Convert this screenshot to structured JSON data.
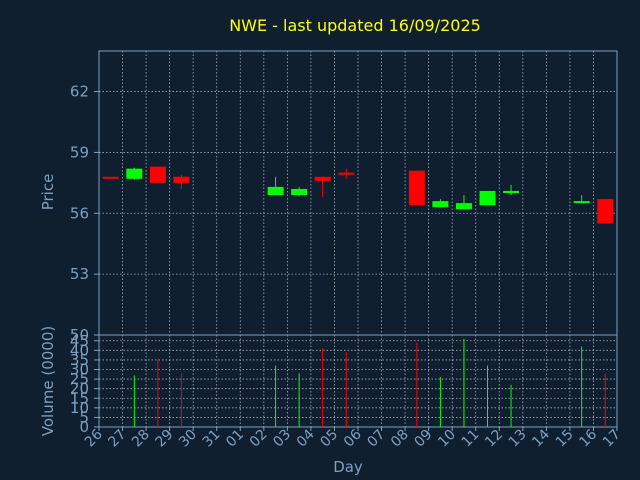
{
  "chart_data": {
    "type": "candlestick",
    "title": "NWE - last updated 16/09/2025",
    "xlabel": "Day",
    "price_panel": {
      "ylabel": "Price",
      "ylim": [
        50,
        64
      ],
      "yticks": [
        50,
        53,
        56,
        59,
        62
      ],
      "grid": true
    },
    "volume_panel": {
      "ylabel": "Volume (0000)",
      "ylim": [
        0,
        48
      ],
      "yticks": [
        0,
        5,
        10,
        15,
        20,
        25,
        30,
        35,
        40,
        45
      ],
      "grid": true
    },
    "x_ticks": [
      "26",
      "27",
      "28",
      "29",
      "30",
      "31",
      "01",
      "02",
      "03",
      "04",
      "05",
      "06",
      "07",
      "08",
      "09",
      "10",
      "11",
      "12",
      "13",
      "14",
      "15",
      "16",
      "17"
    ],
    "candles": [
      {
        "day": "26",
        "open": 57.8,
        "high": 57.8,
        "low": 57.8,
        "close": 57.8,
        "direction": "down",
        "volume": null
      },
      {
        "day": "27",
        "open": 57.7,
        "high": 58.25,
        "low": 57.65,
        "close": 58.2,
        "direction": "up",
        "volume": 27
      },
      {
        "day": "28",
        "open": 58.3,
        "high": 58.3,
        "low": 57.5,
        "close": 57.5,
        "direction": "down",
        "volume": 35
      },
      {
        "day": "29",
        "open": 57.8,
        "high": 57.9,
        "low": 57.2,
        "close": 57.5,
        "direction": "down",
        "volume": 28
      },
      {
        "day": "02",
        "open": 56.9,
        "high": 57.8,
        "low": 56.9,
        "close": 57.3,
        "direction": "up",
        "volume": 32
      },
      {
        "day": "03",
        "open": 56.9,
        "high": 57.3,
        "low": 56.85,
        "close": 57.2,
        "direction": "up",
        "volume": 28
      },
      {
        "day": "04",
        "open": 57.8,
        "high": 57.8,
        "low": 56.8,
        "close": 57.6,
        "direction": "down",
        "volume": 41
      },
      {
        "day": "05",
        "open": 58.0,
        "high": 58.2,
        "low": 57.7,
        "close": 57.9,
        "direction": "down",
        "volume": 39
      },
      {
        "day": "08",
        "open": 58.1,
        "high": 58.1,
        "low": 56.4,
        "close": 56.4,
        "direction": "down",
        "volume": 44
      },
      {
        "day": "09",
        "open": 56.3,
        "high": 56.7,
        "low": 56.3,
        "close": 56.6,
        "direction": "up",
        "volume": 26
      },
      {
        "day": "10",
        "open": 56.2,
        "high": 56.9,
        "low": 56.2,
        "close": 56.5,
        "direction": "up",
        "volume": 46
      },
      {
        "day": "11",
        "open": 56.4,
        "high": 57.1,
        "low": 56.4,
        "close": 57.1,
        "direction": "up",
        "volume": 32
      },
      {
        "day": "12",
        "open": 57.0,
        "high": 57.4,
        "low": 56.9,
        "close": 57.1,
        "direction": "up",
        "volume": 22
      },
      {
        "day": "15",
        "open": 56.5,
        "high": 56.9,
        "low": 56.5,
        "close": 56.6,
        "direction": "up",
        "volume": 42
      },
      {
        "day": "16",
        "open": 56.7,
        "high": 56.7,
        "low": 55.5,
        "close": 55.5,
        "direction": "down",
        "volume": 28
      }
    ],
    "colors": {
      "background": "#0f1f30",
      "axis": "#7f9fbf",
      "grid": "#ffffff",
      "title": "#ffff00",
      "up": "#00ff00",
      "down": "#ff0000"
    }
  }
}
